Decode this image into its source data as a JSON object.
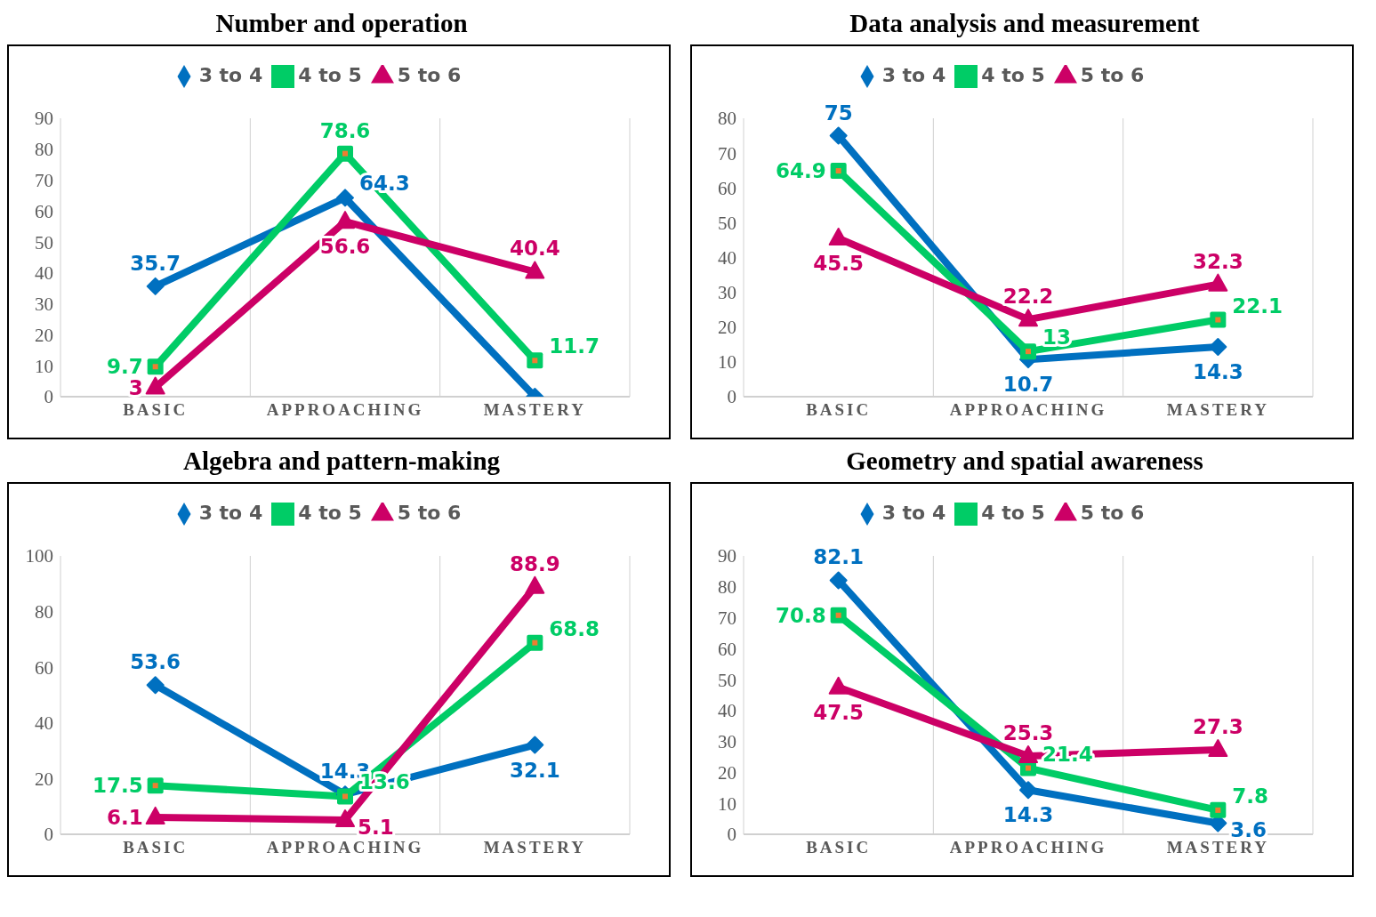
{
  "chart_data": [
    {
      "type": "line",
      "title": "Number and operation",
      "categories": [
        "BASIC",
        "APPROACHING",
        "MASTERY"
      ],
      "ylim": [
        0,
        90
      ],
      "yticks": [
        0,
        10,
        20,
        30,
        40,
        50,
        60,
        70,
        80,
        90
      ],
      "grid": "x",
      "legend": "top",
      "line_style": "solid",
      "series": [
        {
          "name": "3 to 4",
          "color": "#0070c0",
          "marker": "diamond",
          "values": [
            35.7,
            64.3,
            0
          ],
          "value_labels": [
            "35.7",
            "64.3",
            null
          ]
        },
        {
          "name": "4 to 5",
          "color": "#00cc66",
          "marker": "square",
          "values": [
            9.7,
            78.6,
            11.7
          ],
          "value_labels": [
            "9.7",
            "78.6",
            "11.7"
          ]
        },
        {
          "name": "5 to 6",
          "color": "#cc0066",
          "marker": "triangle",
          "values": [
            3,
            56.6,
            40.4
          ],
          "value_labels": [
            "3",
            "56.6",
            "40.4"
          ]
        }
      ]
    },
    {
      "type": "line",
      "title": "Data analysis and measurement",
      "categories": [
        "BASIC",
        "APPROACHING",
        "MASTERY"
      ],
      "ylim": [
        0,
        80
      ],
      "yticks": [
        0,
        10,
        20,
        30,
        40,
        50,
        60,
        70,
        80
      ],
      "grid": "x",
      "legend": "top",
      "line_style": "solid",
      "series": [
        {
          "name": "3 to 4",
          "color": "#0070c0",
          "marker": "diamond",
          "values": [
            75,
            10.7,
            14.3
          ],
          "value_labels": [
            "75",
            "10.7",
            "14.3"
          ]
        },
        {
          "name": "4 to 5",
          "color": "#00cc66",
          "marker": "square",
          "values": [
            64.9,
            13,
            22.1
          ],
          "value_labels": [
            "64.9",
            "13",
            "22.1"
          ]
        },
        {
          "name": "5 to 6",
          "color": "#cc0066",
          "marker": "triangle",
          "values": [
            45.5,
            22.2,
            32.3
          ],
          "value_labels": [
            "45.5",
            "22.2",
            "32.3"
          ]
        }
      ]
    },
    {
      "type": "line",
      "title": "Algebra and pattern-making",
      "categories": [
        "BASIC",
        "APPROACHING",
        "MASTERY"
      ],
      "ylim": [
        0,
        100
      ],
      "yticks": [
        0,
        20,
        40,
        60,
        80,
        100
      ],
      "grid": "x",
      "legend": "top",
      "line_style": "solid",
      "series": [
        {
          "name": "3 to 4",
          "color": "#0070c0",
          "marker": "diamond",
          "values": [
            53.6,
            14.3,
            32.1
          ],
          "value_labels": [
            "53.6",
            "14.3",
            "32.1"
          ]
        },
        {
          "name": "4 to 5",
          "color": "#00cc66",
          "marker": "square",
          "values": [
            17.5,
            13.6,
            68.8
          ],
          "value_labels": [
            "17.5",
            "13.6",
            "68.8"
          ]
        },
        {
          "name": "5 to 6",
          "color": "#cc0066",
          "marker": "triangle",
          "values": [
            6.1,
            5.1,
            88.9
          ],
          "value_labels": [
            "6.1",
            "5.1",
            "88.9"
          ]
        }
      ]
    },
    {
      "type": "line",
      "title": "Geometry and spatial awareness",
      "categories": [
        "BASIC",
        "APPROACHING",
        "MASTERY"
      ],
      "ylim": [
        0,
        90
      ],
      "yticks": [
        0,
        10,
        20,
        30,
        40,
        50,
        60,
        70,
        80,
        90
      ],
      "grid": "x",
      "legend": "top",
      "line_style": "solid",
      "series": [
        {
          "name": "3 to 4",
          "color": "#0070c0",
          "marker": "diamond",
          "values": [
            82.1,
            14.3,
            3.6
          ],
          "value_labels": [
            "82.1",
            "14.3",
            "3.6"
          ]
        },
        {
          "name": "4 to 5",
          "color": "#00cc66",
          "marker": "square",
          "values": [
            70.8,
            21.4,
            7.8
          ],
          "value_labels": [
            "70.8",
            "21.4",
            "7.8"
          ]
        },
        {
          "name": "5 to 6",
          "color": "#cc0066",
          "marker": "triangle",
          "values": [
            47.5,
            25.3,
            27.3
          ],
          "value_labels": [
            "47.5",
            "25.3",
            "27.3"
          ]
        }
      ]
    }
  ]
}
